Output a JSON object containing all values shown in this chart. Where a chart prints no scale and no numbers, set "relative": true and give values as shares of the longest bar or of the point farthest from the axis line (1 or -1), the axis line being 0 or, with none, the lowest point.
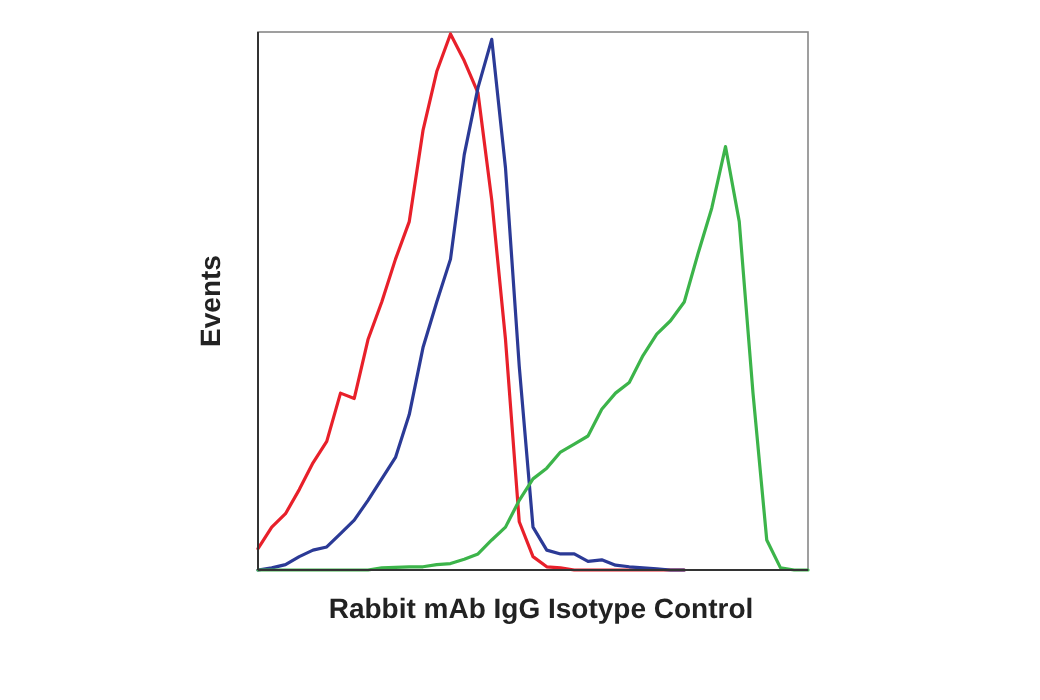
{
  "chart_data": {
    "type": "line",
    "relative": true,
    "xlabel": "Rabbit mAb IgG Isotype Control",
    "ylabel": "Events",
    "marker": "none",
    "line_style": "solid",
    "categories": [
      null,
      null,
      null,
      null,
      null,
      null,
      null,
      null,
      null,
      null,
      null,
      null,
      null,
      null,
      null,
      null,
      null,
      null,
      null,
      null,
      null,
      null,
      null,
      null,
      null,
      null,
      null,
      null,
      null,
      null,
      null,
      null,
      null,
      null,
      null,
      null,
      null,
      null,
      null,
      null,
      null
    ],
    "series": [
      {
        "color": "#e8202a",
        "values": [
          0.04,
          0.08,
          0.105,
          0.15,
          0.2,
          0.24,
          0.33,
          0.32,
          0.43,
          0.5,
          0.58,
          0.65,
          0.82,
          0.93,
          1,
          0.95,
          0.89,
          0.69,
          0.43,
          0.09,
          0.025,
          0.006,
          0.004,
          0,
          0,
          0,
          0,
          0,
          0,
          0,
          0,
          0,
          null,
          null,
          null,
          null,
          null,
          null,
          null,
          null,
          null
        ]
      },
      {
        "color": "#2b3a96",
        "values": [
          0,
          0.004,
          0.01,
          0.025,
          0.037,
          0.043,
          0.068,
          0.093,
          0.13,
          0.17,
          0.21,
          0.29,
          0.415,
          0.5,
          0.58,
          0.775,
          0.9,
          0.99,
          0.75,
          0.38,
          0.08,
          0.037,
          0.03,
          0.03,
          0.016,
          0.019,
          0.009,
          0.006,
          0.004,
          0.002,
          0,
          0,
          null,
          null,
          null,
          null,
          null,
          null,
          null,
          null,
          null
        ]
      },
      {
        "color": "#3cb44a",
        "values": [
          0,
          0,
          0,
          0,
          0,
          0,
          0,
          0,
          0,
          0.004,
          0.005,
          0.006,
          0.006,
          0.01,
          0.012,
          0.02,
          0.03,
          0.056,
          0.08,
          0.13,
          0.17,
          0.19,
          0.22,
          0.235,
          0.25,
          0.3,
          0.33,
          0.35,
          0.4,
          0.44,
          0.465,
          0.5,
          0.59,
          0.675,
          0.79,
          0.65,
          0.33,
          0.056,
          0.004,
          0,
          0
        ]
      }
    ]
  }
}
